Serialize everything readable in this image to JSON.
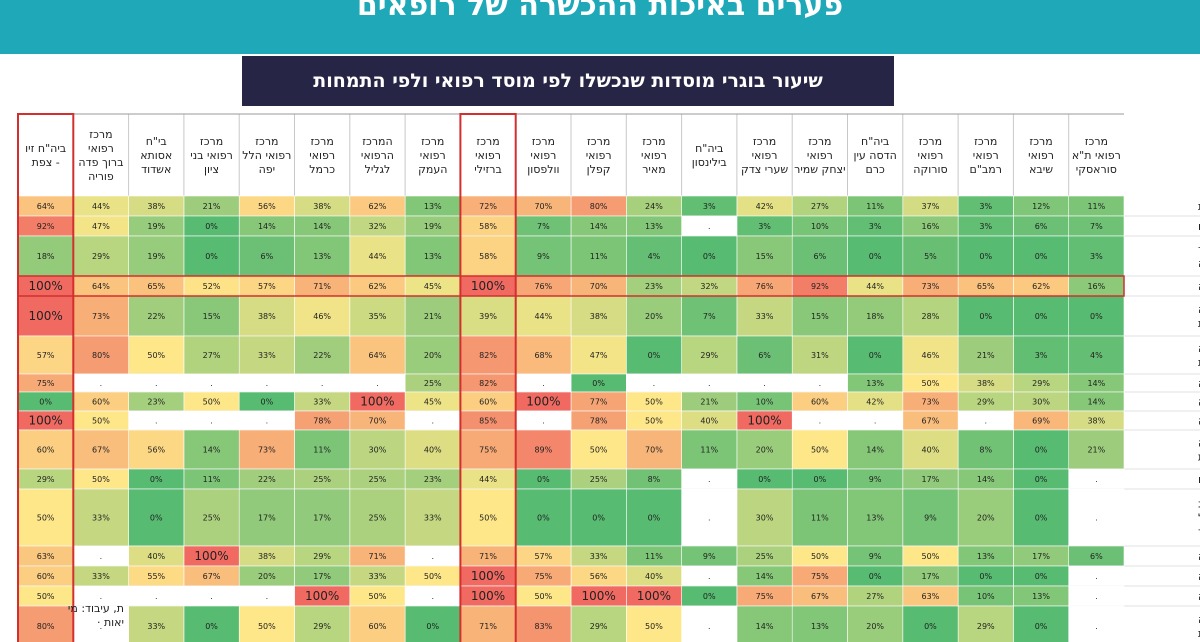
{
  "header": {
    "banner_title": "פערים באיכות ההכשרה של רופאים",
    "subtitle": "שיעור בוגרי מוסדות שנכשלו לפי מוסד רפואי ולפי התמחות"
  },
  "credit": {
    "line1": "ת, עיבוד: מי",
    "line2": "יאות ·"
  },
  "colors": {
    "banner": "#1fa8b7",
    "subtitle_bg": "#262545",
    "highlight_border": "#d32f2f",
    "scale_low": "#57bb72",
    "scale_mid": "#fee789",
    "scale_high": "#f06a62",
    "missing": "#ffffff"
  },
  "chart_data": {
    "type": "heatmap",
    "unit": "%",
    "missing_label": ".",
    "color_scale": "green (low) - yellow - red (high)",
    "highlighted_columns": [
      "ביה\"ח זיו - צפת",
      "מרכז רפואי ברזילי"
    ],
    "highlighted_rows": [
      "הרדמה"
    ],
    "columns": [
      "מרכז רפואי ת\"א סוראסקי",
      "מרכז רפואי שיבא",
      "מרכז רפואי רמב\"ם",
      "מרכז רפואי סורוקה",
      "ביה\"ח הדסה עין כרם",
      "מרכז רפואי יצחק שמיר",
      "מרכז רפואי שערי צדק",
      "ביה\"ח בילינסון",
      "מרכז רפואי מאיר",
      "מרכז רפואי קפלן",
      "מרכז רפואי וולפסון",
      "מרכז רפואי ברזילי",
      "מרכז רפואי העמק",
      "המרכז הרפואי לגליל",
      "מרכז רפואי כרמל",
      "מרכז רפואי הלל יפה",
      "מרכז רפואי בני ציון",
      "בי\"ח אסותא אשדוד",
      "מרכז רפואי ברוך פדה פוריה",
      "ביה\"ח זיו - צפת"
    ],
    "rows": [
      {
        "label": "רפואה פנימית",
        "values": [
          11,
          12,
          3,
          37,
          11,
          27,
          42,
          3,
          24,
          80,
          70,
          72,
          13,
          62,
          38,
          56,
          21,
          38,
          44,
          64
        ]
      },
      {
        "label": "רפואת ילדים",
        "values": [
          7,
          6,
          3,
          16,
          3,
          10,
          3,
          null,
          13,
          14,
          7,
          58,
          19,
          32,
          14,
          14,
          0,
          19,
          47,
          92
        ]
      },
      {
        "label": "יילוד וגינקולוגיה",
        "values": [
          3,
          0,
          0,
          5,
          0,
          6,
          15,
          0,
          4,
          11,
          9,
          58,
          13,
          44,
          13,
          6,
          0,
          19,
          29,
          18
        ]
      },
      {
        "label": "הרדמה",
        "values": [
          16,
          62,
          65,
          73,
          44,
          92,
          76,
          32,
          23,
          70,
          76,
          100,
          45,
          62,
          71,
          57,
          52,
          65,
          64,
          100
        ]
      },
      {
        "label": "כירורגיה אורתופדית",
        "values": [
          0,
          0,
          0,
          28,
          18,
          15,
          33,
          7,
          20,
          38,
          44,
          39,
          21,
          35,
          46,
          38,
          15,
          22,
          73,
          100
        ]
      },
      {
        "label": "כירורגיה כללית",
        "values": [
          4,
          3,
          21,
          46,
          0,
          31,
          6,
          29,
          0,
          47,
          68,
          82,
          20,
          64,
          22,
          33,
          27,
          50,
          80,
          57
        ]
      },
      {
        "label": "פסיכיאטריה",
        "values": [
          14,
          29,
          38,
          50,
          13,
          null,
          null,
          null,
          null,
          0,
          null,
          82,
          25,
          null,
          null,
          null,
          null,
          null,
          null,
          75
        ]
      },
      {
        "label": "רפואה דחופה",
        "values": [
          14,
          30,
          29,
          73,
          42,
          60,
          10,
          21,
          50,
          77,
          100,
          60,
          45,
          100,
          33,
          0,
          50,
          23,
          60,
          0
        ]
      },
      {
        "label": "גריאטריה",
        "values": [
          38,
          69,
          null,
          67,
          null,
          null,
          100,
          40,
          50,
          78,
          null,
          85,
          null,
          70,
          78,
          null,
          null,
          null,
          50,
          100
        ]
      },
      {
        "label": "רדיולוגיה אבחנתית",
        "values": [
          21,
          0,
          8,
          40,
          14,
          50,
          20,
          11,
          70,
          50,
          89,
          75,
          40,
          30,
          11,
          73,
          14,
          56,
          67,
          60
        ]
      },
      {
        "label": "מחלות עיניים",
        "values": [
          null,
          0,
          14,
          17,
          9,
          0,
          0,
          null,
          8,
          25,
          0,
          44,
          23,
          25,
          25,
          22,
          11,
          0,
          50,
          29
        ]
      },
      {
        "label": "מחלות א.א.ג וכירורגיה של ראש וצוואר",
        "values": [
          null,
          0,
          20,
          9,
          13,
          11,
          30,
          null,
          0,
          0,
          0,
          50,
          33,
          25,
          17,
          17,
          25,
          0,
          33,
          50
        ]
      },
      {
        "label": "נוירולוגיה",
        "values": [
          6,
          17,
          13,
          50,
          9,
          50,
          25,
          9,
          11,
          33,
          57,
          71,
          null,
          71,
          29,
          38,
          100,
          40,
          null,
          63
        ]
      },
      {
        "label": "קרדיולוגיה",
        "values": [
          null,
          0,
          0,
          17,
          0,
          75,
          14,
          null,
          40,
          56,
          75,
          100,
          50,
          33,
          17,
          20,
          67,
          55,
          33,
          60
        ]
      },
      {
        "label": "אונקולוגיה",
        "values": [
          null,
          13,
          10,
          63,
          27,
          67,
          75,
          0,
          100,
          100,
          50,
          100,
          null,
          50,
          100,
          null,
          null,
          null,
          null,
          50
        ]
      },
      {
        "label": "כירורגיה אורולוגית",
        "values": [
          null,
          0,
          29,
          0,
          20,
          13,
          14,
          null,
          50,
          29,
          83,
          71,
          0,
          60,
          29,
          50,
          0,
          33,
          null,
          80
        ]
      }
    ]
  }
}
